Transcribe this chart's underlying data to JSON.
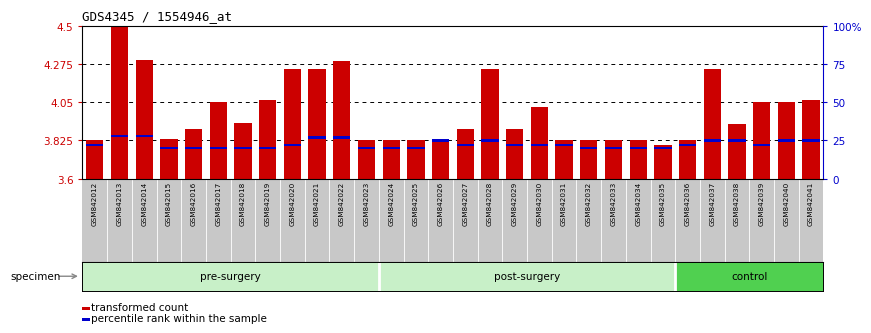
{
  "title": "GDS4345 / 1554946_at",
  "samples": [
    "GSM842012",
    "GSM842013",
    "GSM842014",
    "GSM842015",
    "GSM842016",
    "GSM842017",
    "GSM842018",
    "GSM842019",
    "GSM842020",
    "GSM842021",
    "GSM842022",
    "GSM842023",
    "GSM842024",
    "GSM842025",
    "GSM842026",
    "GSM842027",
    "GSM842028",
    "GSM842029",
    "GSM842030",
    "GSM842031",
    "GSM842032",
    "GSM842033",
    "GSM842034",
    "GSM842035",
    "GSM842036",
    "GSM842037",
    "GSM842038",
    "GSM842039",
    "GSM842040",
    "GSM842041"
  ],
  "transformed_count": [
    3.83,
    4.498,
    4.3,
    3.833,
    3.895,
    4.05,
    3.93,
    4.062,
    4.245,
    4.245,
    4.295,
    3.828,
    3.828,
    3.828,
    3.828,
    3.895,
    4.245,
    3.895,
    4.022,
    3.828,
    3.828,
    3.828,
    3.828,
    3.8,
    3.828,
    4.245,
    3.92,
    4.05,
    4.05,
    4.062
  ],
  "percentile_rank": [
    22,
    28,
    28,
    20,
    20,
    20,
    20,
    20,
    22,
    27,
    27,
    20,
    20,
    20,
    25,
    22,
    25,
    22,
    22,
    22,
    20,
    20,
    20,
    20,
    22,
    25,
    25,
    22,
    25,
    25
  ],
  "ymin": 3.6,
  "ymax": 4.5,
  "yticks": [
    3.6,
    3.825,
    4.05,
    4.275,
    4.5
  ],
  "ytick_labels": [
    "3.6",
    "3.825",
    "4.05",
    "4.275",
    "4.5"
  ],
  "right_yticks": [
    0,
    25,
    50,
    75,
    100
  ],
  "right_ytick_labels": [
    "0",
    "25",
    "50",
    "75",
    "100%"
  ],
  "bar_color": "#CC0000",
  "percentile_color": "#0000CC",
  "gray_bg": "#C8C8C8",
  "groups": [
    {
      "label": "pre-surgery",
      "start": 0,
      "end": 12,
      "color": "#C8F0C8"
    },
    {
      "label": "post-surgery",
      "start": 12,
      "end": 24,
      "color": "#C8F0C8"
    },
    {
      "label": "control",
      "start": 24,
      "end": 30,
      "color": "#50D050"
    }
  ]
}
